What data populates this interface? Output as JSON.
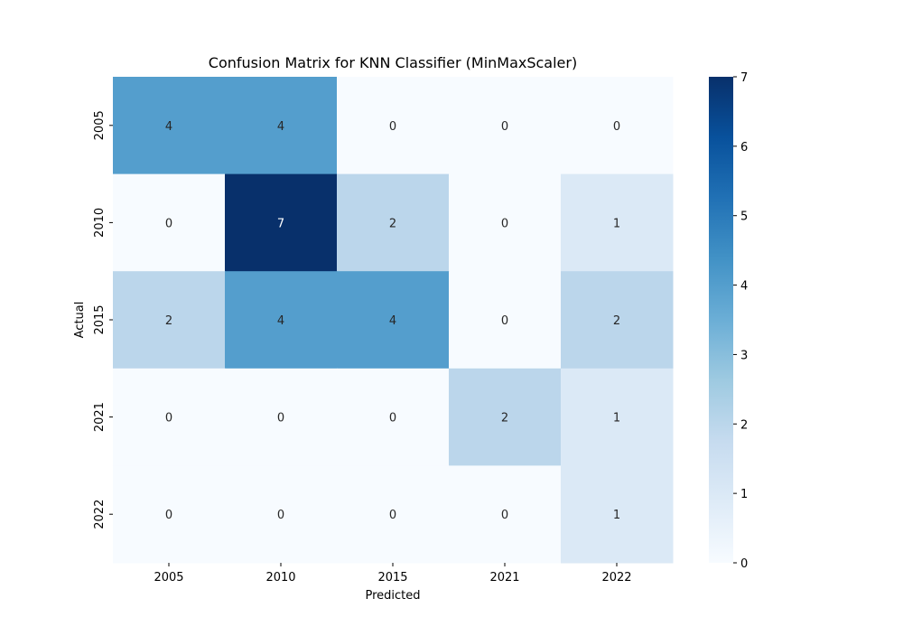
{
  "chart_data": {
    "type": "heatmap",
    "title": "Confusion Matrix for KNN Classifier (MinMaxScaler)",
    "xlabel": "Predicted",
    "ylabel": "Actual",
    "x_categories": [
      "2005",
      "2010",
      "2015",
      "2021",
      "2022"
    ],
    "y_categories": [
      "2005",
      "2010",
      "2015",
      "2021",
      "2022"
    ],
    "values": [
      [
        4,
        4,
        0,
        0,
        0
      ],
      [
        0,
        7,
        2,
        0,
        1
      ],
      [
        2,
        4,
        4,
        0,
        2
      ],
      [
        0,
        0,
        0,
        2,
        1
      ],
      [
        0,
        0,
        0,
        0,
        1
      ]
    ],
    "colorbar": {
      "range": [
        0,
        7
      ],
      "ticks": [
        "0",
        "1",
        "2",
        "3",
        "4",
        "5",
        "6",
        "7"
      ]
    },
    "colormap": "Blues",
    "colors": {
      "low": "#f7fbff",
      "high": "#08306b"
    },
    "grid": false
  }
}
